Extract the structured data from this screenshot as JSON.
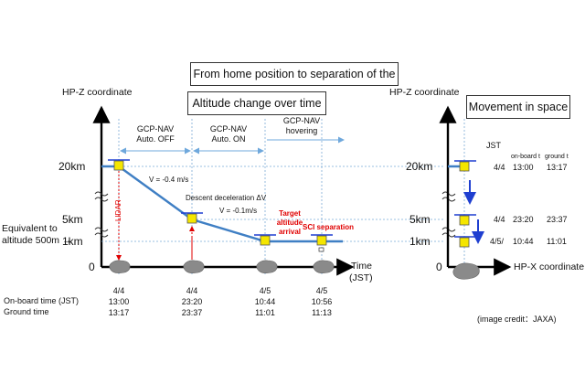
{
  "title": "From home position to separation of the SCI",
  "left": {
    "subtitle": "Altitude change over time",
    "yaxis_label": "HP-Z coordinate",
    "y_ticks": [
      "20km",
      "5km",
      "1km",
      "0"
    ],
    "equivalent_label_1": "Equivalent to",
    "equivalent_label_2": "altitude 500m →",
    "time_label": "Time",
    "time_unit": "(JST)",
    "phases": [
      {
        "line1": "GCP-NAV",
        "line2": "Auto. OFF"
      },
      {
        "line1": "GCP-NAV",
        "line2": "Auto. ON"
      },
      {
        "line1": "GCP-NAV",
        "line2": "hovering"
      }
    ],
    "velocity_1": "V = -0.4 m/s",
    "descent_label": "Descent deceleration ΔV",
    "velocity_2": "V = -0.1m/s",
    "lidar_label": "LIDAR",
    "target_label_1": "Target",
    "target_label_2": "altitude",
    "target_label_3": "arrival",
    "sci_label": "SCI separation",
    "row_label_onboard": "On-board time (JST)",
    "row_label_ground": "Ground time",
    "events": [
      {
        "date": "4/4",
        "onboard": "13:00",
        "ground": "13:17"
      },
      {
        "date": "4/4",
        "onboard": "23:20",
        "ground": "23:37"
      },
      {
        "date": "4/5",
        "onboard": "10:44",
        "ground": "11:01"
      },
      {
        "date": "4/5",
        "onboard": "10:56",
        "ground": "11:13"
      }
    ]
  },
  "right": {
    "subtitle": "Movement in space",
    "yaxis_label": "HP-Z coordinate",
    "xaxis_label": "HP-X coordinate",
    "y_ticks": [
      "20km",
      "5km",
      "1km",
      "0"
    ],
    "jst": "JST",
    "col_onboard": "on-board t",
    "col_ground": "ground t",
    "rows": [
      {
        "date": "4/4",
        "onboard": "13:00",
        "ground": "13:17"
      },
      {
        "date": "4/4",
        "onboard": "23:20",
        "ground": "23:37"
      },
      {
        "date": "4/5/",
        "onboard": "10:44",
        "ground": "11:01"
      }
    ]
  },
  "credit": "(image credit：JAXA)",
  "colors": {
    "path": "#3f7fc4",
    "red": "#e00000",
    "arrow_blue": "#1f3fd0",
    "spacecraft": "#f5e600"
  }
}
